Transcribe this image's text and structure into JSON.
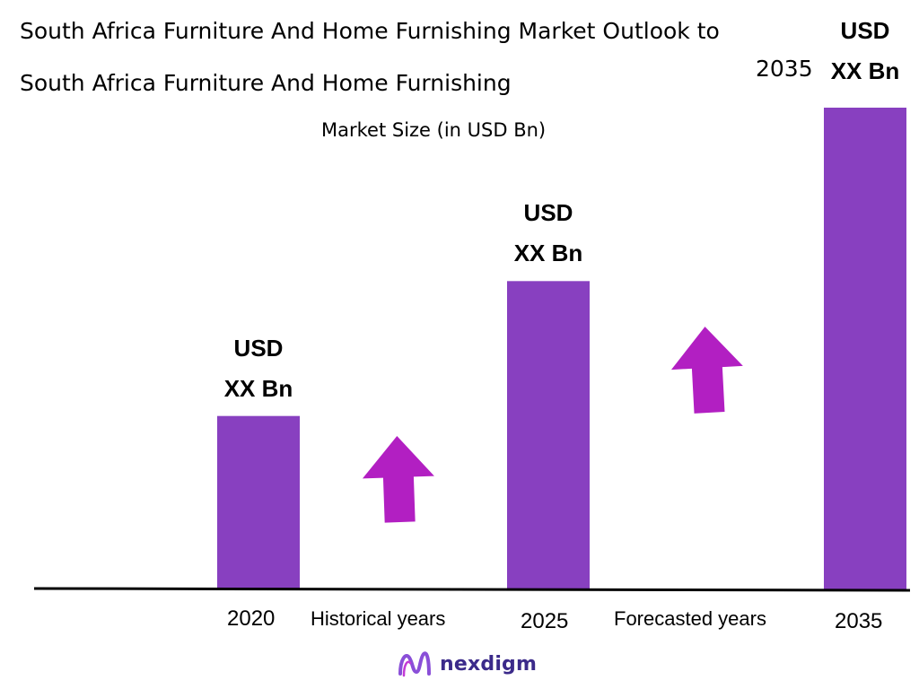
{
  "title": {
    "line1": "South Africa Furniture And Home Furnishing Market Outlook to",
    "year": "2035",
    "line2": "South Africa Furniture And Home Furnishing"
  },
  "subtitle": "Market Size (in USD Bn)",
  "chart_data": {
    "type": "bar",
    "categories": [
      "2020",
      "2025",
      "2035"
    ],
    "relative_heights": [
      0.36,
      0.64,
      1.0
    ],
    "value_labels": [
      {
        "line1": "USD",
        "line2": "XX Bn"
      },
      {
        "line1": "USD",
        "line2": "XX Bn"
      },
      {
        "line1": "USD",
        "line2": "XX Bn"
      }
    ],
    "between_labels": [
      "Historical years",
      "Forecasted years"
    ],
    "bar_color": "#8840c0",
    "arrow_color": "#b21fc2",
    "axis_color": "#000000"
  },
  "brand": {
    "name": "nexdigm",
    "icon": "nexdigm-logo-icon",
    "color": "#3b2a8a"
  }
}
